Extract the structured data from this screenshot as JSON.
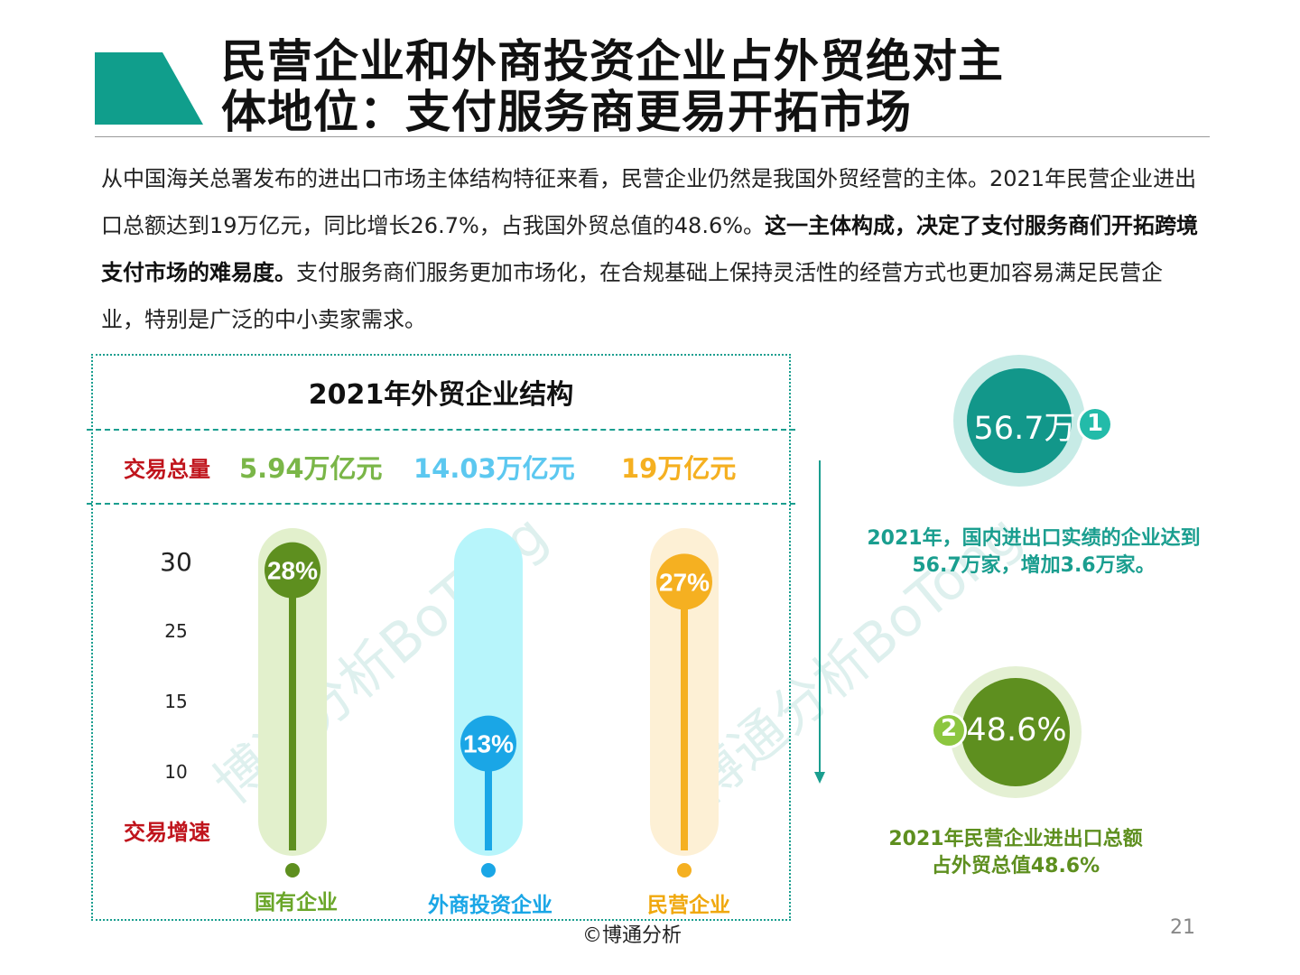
{
  "header": {
    "title_line1": "民营企业和外商投资企业占外贸绝对主",
    "title_line2": "体地位：支付服务商更易开拓市场"
  },
  "intro": {
    "p1": "从中国海关总署发布的进出口市场主体结构特征来看，民营企业仍然是我国外贸经营的主体。2021年民营企业进出口总额达到19万亿元，同比增长26.7%，占我国外贸总值的48.6%。",
    "bold": "这一主体构成，决定了支付服务商们开拓跨境支付市场的难易度。",
    "p2": "支付服务商们服务更加市场化，在合规基础上保持灵活性的经营方式也更加容易满足民营企业，特别是广泛的中小卖家需求。"
  },
  "colors": {
    "teal": "#1a9e8f",
    "green": "#5e8f1f",
    "blue": "#1aa6e6",
    "orange": "#f5b021",
    "red": "#c0141c"
  },
  "chart_data": {
    "type": "bar",
    "title": "2021年外贸企业结构",
    "volume_label": "交易总量",
    "rate_label": "交易增速",
    "categories": [
      "国有企业",
      "外商投资企业",
      "民营企业"
    ],
    "volumes": [
      "5.94万亿元",
      "14.03万亿元",
      "19万亿元"
    ],
    "values": [
      28,
      13,
      27
    ],
    "value_labels": [
      "28%",
      "13%",
      "27%"
    ],
    "y_ticks": [
      "30",
      "25",
      "15",
      "10"
    ],
    "colors": [
      "#5e8f1f",
      "#1aa6e6",
      "#f5b021"
    ],
    "track_colors": [
      "#e2f0cc",
      "#b7f5fb",
      "#fdf0d5"
    ]
  },
  "right": {
    "circle1_value": "56.7万",
    "circle1_badge": "1",
    "caption1_line1": "2021年，国内进出口实绩的企业达到",
    "caption1_line2": "56.7万家，增加3.6万家。",
    "circle2_value": "48.6%",
    "circle2_badge": "2",
    "caption2_line1": "2021年民营企业进出口总额",
    "caption2_line2": "占外贸总值48.6%"
  },
  "watermark": "博通分析BoTong",
  "footer": {
    "copyright": "©博通分析",
    "page": "21"
  }
}
